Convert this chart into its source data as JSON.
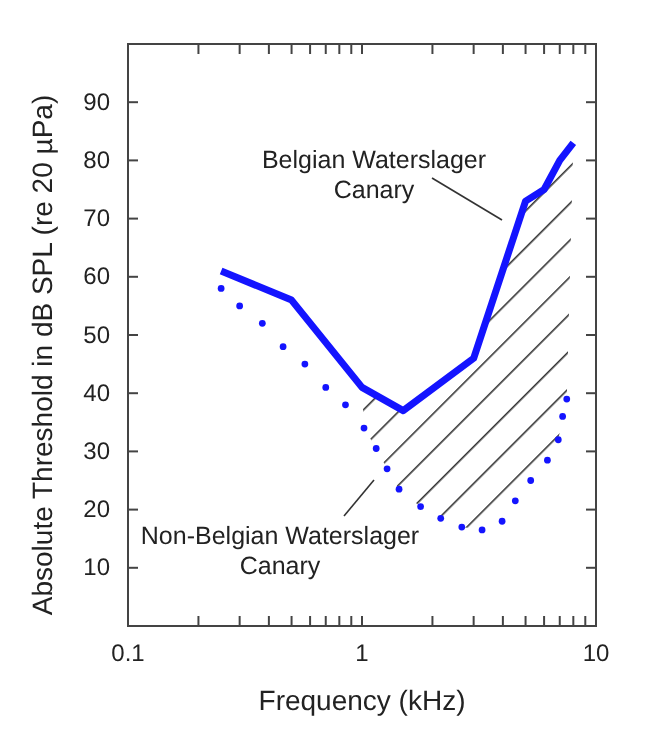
{
  "chart_data": {
    "type": "line",
    "xlabel": "Frequency (kHz)",
    "ylabel": "Absolute Threshold in dB SPL (re 20 µPa)",
    "log": "x",
    "grid": false,
    "xlim": [
      0.1,
      10
    ],
    "ylim": [
      0,
      100
    ],
    "xticks": [
      0.1,
      {
        "value": 0.2,
        "label": null
      },
      {
        "value": 0.3,
        "label": null
      },
      {
        "value": 0.4,
        "label": null
      },
      {
        "value": 0.5,
        "label": null
      },
      {
        "value": 0.6,
        "label": null
      },
      {
        "value": 0.7,
        "label": null
      },
      {
        "value": 0.8,
        "label": null
      },
      {
        "value": 0.9,
        "label": null
      },
      1,
      {
        "value": 2,
        "label": null
      },
      {
        "value": 3,
        "label": null
      },
      {
        "value": 4,
        "label": null
      },
      {
        "value": 5,
        "label": null
      },
      {
        "value": 6,
        "label": null
      },
      {
        "value": 7,
        "label": null
      },
      {
        "value": 8,
        "label": null
      },
      {
        "value": 9,
        "label": null
      },
      10
    ],
    "yticks": [
      10,
      20,
      30,
      40,
      50,
      60,
      70,
      80,
      90
    ],
    "annotations": [
      "Belgian Waterslager\nCanary",
      "Non-Belgian Waterslager\nCanary"
    ],
    "series": [
      {
        "color": "#1414ff",
        "marker": "none",
        "line_style": "solid",
        "x": [
          0.25,
          0.5,
          1,
          1.5,
          3,
          5,
          6,
          7,
          8
        ],
        "values": [
          61,
          56,
          41,
          37,
          46,
          73,
          75,
          80,
          83
        ]
      },
      {
        "type": "scatter",
        "color": "#1414ff",
        "marker": "circle",
        "x": [
          0.25,
          0.3,
          0.375,
          0.46,
          0.57,
          0.7,
          0.85,
          1.02,
          1.15,
          1.28,
          1.44,
          1.78,
          2.17,
          2.67,
          3.26,
          3.97,
          4.52,
          5.26,
          6.2,
          6.9,
          7.2,
          7.5
        ],
        "values": [
          58,
          55,
          52,
          48,
          45,
          41,
          38,
          34,
          30.5,
          27,
          23.5,
          20.5,
          18.5,
          17,
          16.5,
          18,
          21.5,
          25,
          28.5,
          32,
          36,
          39
        ]
      }
    ]
  }
}
